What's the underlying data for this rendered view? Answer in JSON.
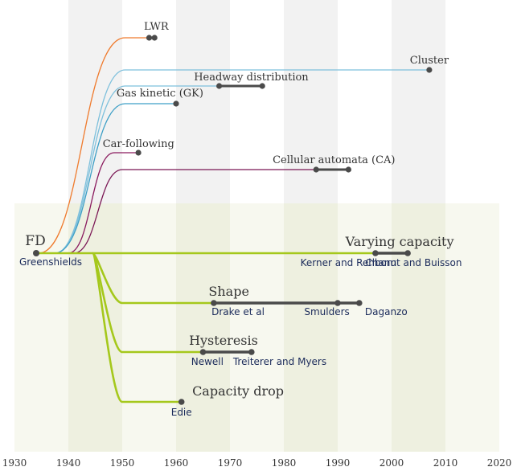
{
  "colors": {
    "band_grey": "#f2f2f2",
    "band_green_light": "#f7f8ef",
    "band_green_dark": "#eef0e0",
    "fd_branch": "#a5c81c",
    "lwr": "#ef7b2e",
    "models_blue": "#3d9fc6",
    "models_blue_light": "#7ec0dc",
    "ca_purple": "#7a1654",
    "cf_purple": "#8a1a5e",
    "node": "#4a4a4a",
    "label_blue": "#1a2a5a",
    "label_dark": "#333333"
  },
  "axis": {
    "ticks": [
      "1930",
      "1940",
      "1950",
      "1960",
      "1970",
      "1980",
      "1990",
      "2000",
      "2010",
      "2020"
    ]
  },
  "root": {
    "title": "FD",
    "subtitle": "Greenshields"
  },
  "model_branches": [
    {
      "label": "LWR",
      "nodes": [
        1955,
        1956
      ]
    },
    {
      "label": "Cluster",
      "nodes": [
        2007
      ]
    },
    {
      "label": "Headway distribution",
      "nodes": [
        1968,
        1976
      ]
    },
    {
      "label": "Gas kinetic (GK)",
      "nodes": [
        1960
      ]
    },
    {
      "label": "Car-following",
      "nodes": [
        1953
      ]
    },
    {
      "label": "Cellular automata (CA)",
      "nodes": [
        1986,
        1992
      ]
    }
  ],
  "fd_branches": [
    {
      "label": "Varying capacity",
      "nodes": [
        1997,
        2003
      ],
      "contributors": [
        "Kerner and Rehborn",
        "Chanut and Buisson"
      ]
    },
    {
      "label": "Shape",
      "nodes": [
        1967,
        1990,
        1994
      ],
      "contributors": [
        "Drake et al",
        "Smulders",
        "Daganzo"
      ]
    },
    {
      "label": "Hysteresis",
      "nodes": [
        1965,
        1974
      ],
      "contributors": [
        "Newell",
        "Treiterer and Myers"
      ]
    },
    {
      "label": "Capacity drop",
      "nodes": [
        1961
      ],
      "contributors": [
        "Edie"
      ]
    }
  ]
}
